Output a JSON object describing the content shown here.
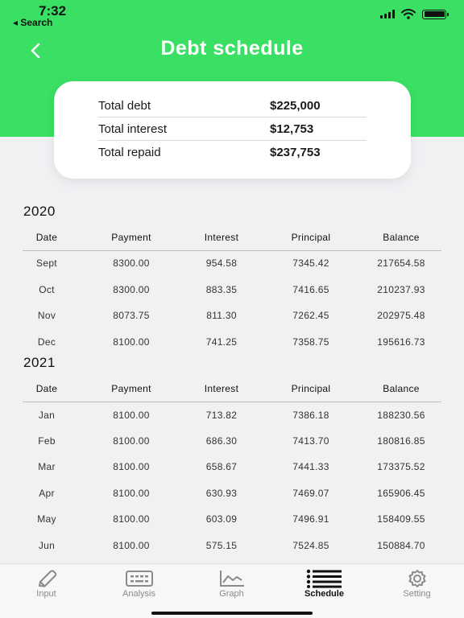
{
  "status_bar": {
    "time": "7:32",
    "back_label": "◂ Search"
  },
  "header": {
    "title": "Debt schedule"
  },
  "summary": [
    {
      "label": "Total debt",
      "value": "$225,000"
    },
    {
      "label": "Total interest",
      "value": "$12,753"
    },
    {
      "label": "Total repaid",
      "value": "$237,753"
    }
  ],
  "columns": [
    "Date",
    "Payment",
    "Interest",
    "Principal",
    "Balance"
  ],
  "years": [
    {
      "year": "2020",
      "rows": [
        [
          "Sept",
          "8300.00",
          "954.58",
          "7345.42",
          "217654.58"
        ],
        [
          "Oct",
          "8300.00",
          "883.35",
          "7416.65",
          "210237.93"
        ],
        [
          "Nov",
          "8073.75",
          "811.30",
          "7262.45",
          "202975.48"
        ],
        [
          "Dec",
          "8100.00",
          "741.25",
          "7358.75",
          "195616.73"
        ]
      ]
    },
    {
      "year": "2021",
      "rows": [
        [
          "Jan",
          "8100.00",
          "713.82",
          "7386.18",
          "188230.56"
        ],
        [
          "Feb",
          "8100.00",
          "686.30",
          "7413.70",
          "180816.85"
        ],
        [
          "Mar",
          "8100.00",
          "658.67",
          "7441.33",
          "173375.52"
        ],
        [
          "Apr",
          "8100.00",
          "630.93",
          "7469.07",
          "165906.45"
        ],
        [
          "May",
          "8100.00",
          "603.09",
          "7496.91",
          "158409.55"
        ],
        [
          "Jun",
          "8100.00",
          "575.15",
          "7524.85",
          "150884.70"
        ]
      ]
    }
  ],
  "tabs": [
    {
      "label": "Input",
      "icon": "pencil-icon",
      "active": false
    },
    {
      "label": "Analysis",
      "icon": "calculator-icon",
      "active": false
    },
    {
      "label": "Graph",
      "icon": "line-chart-icon",
      "active": false
    },
    {
      "label": "Schedule",
      "icon": "list-icon",
      "active": true
    },
    {
      "label": "Setting",
      "icon": "gear-icon",
      "active": false
    }
  ],
  "colors": {
    "accent": "#39e064",
    "background": "#f1f1f4",
    "card": "#ffffff"
  }
}
